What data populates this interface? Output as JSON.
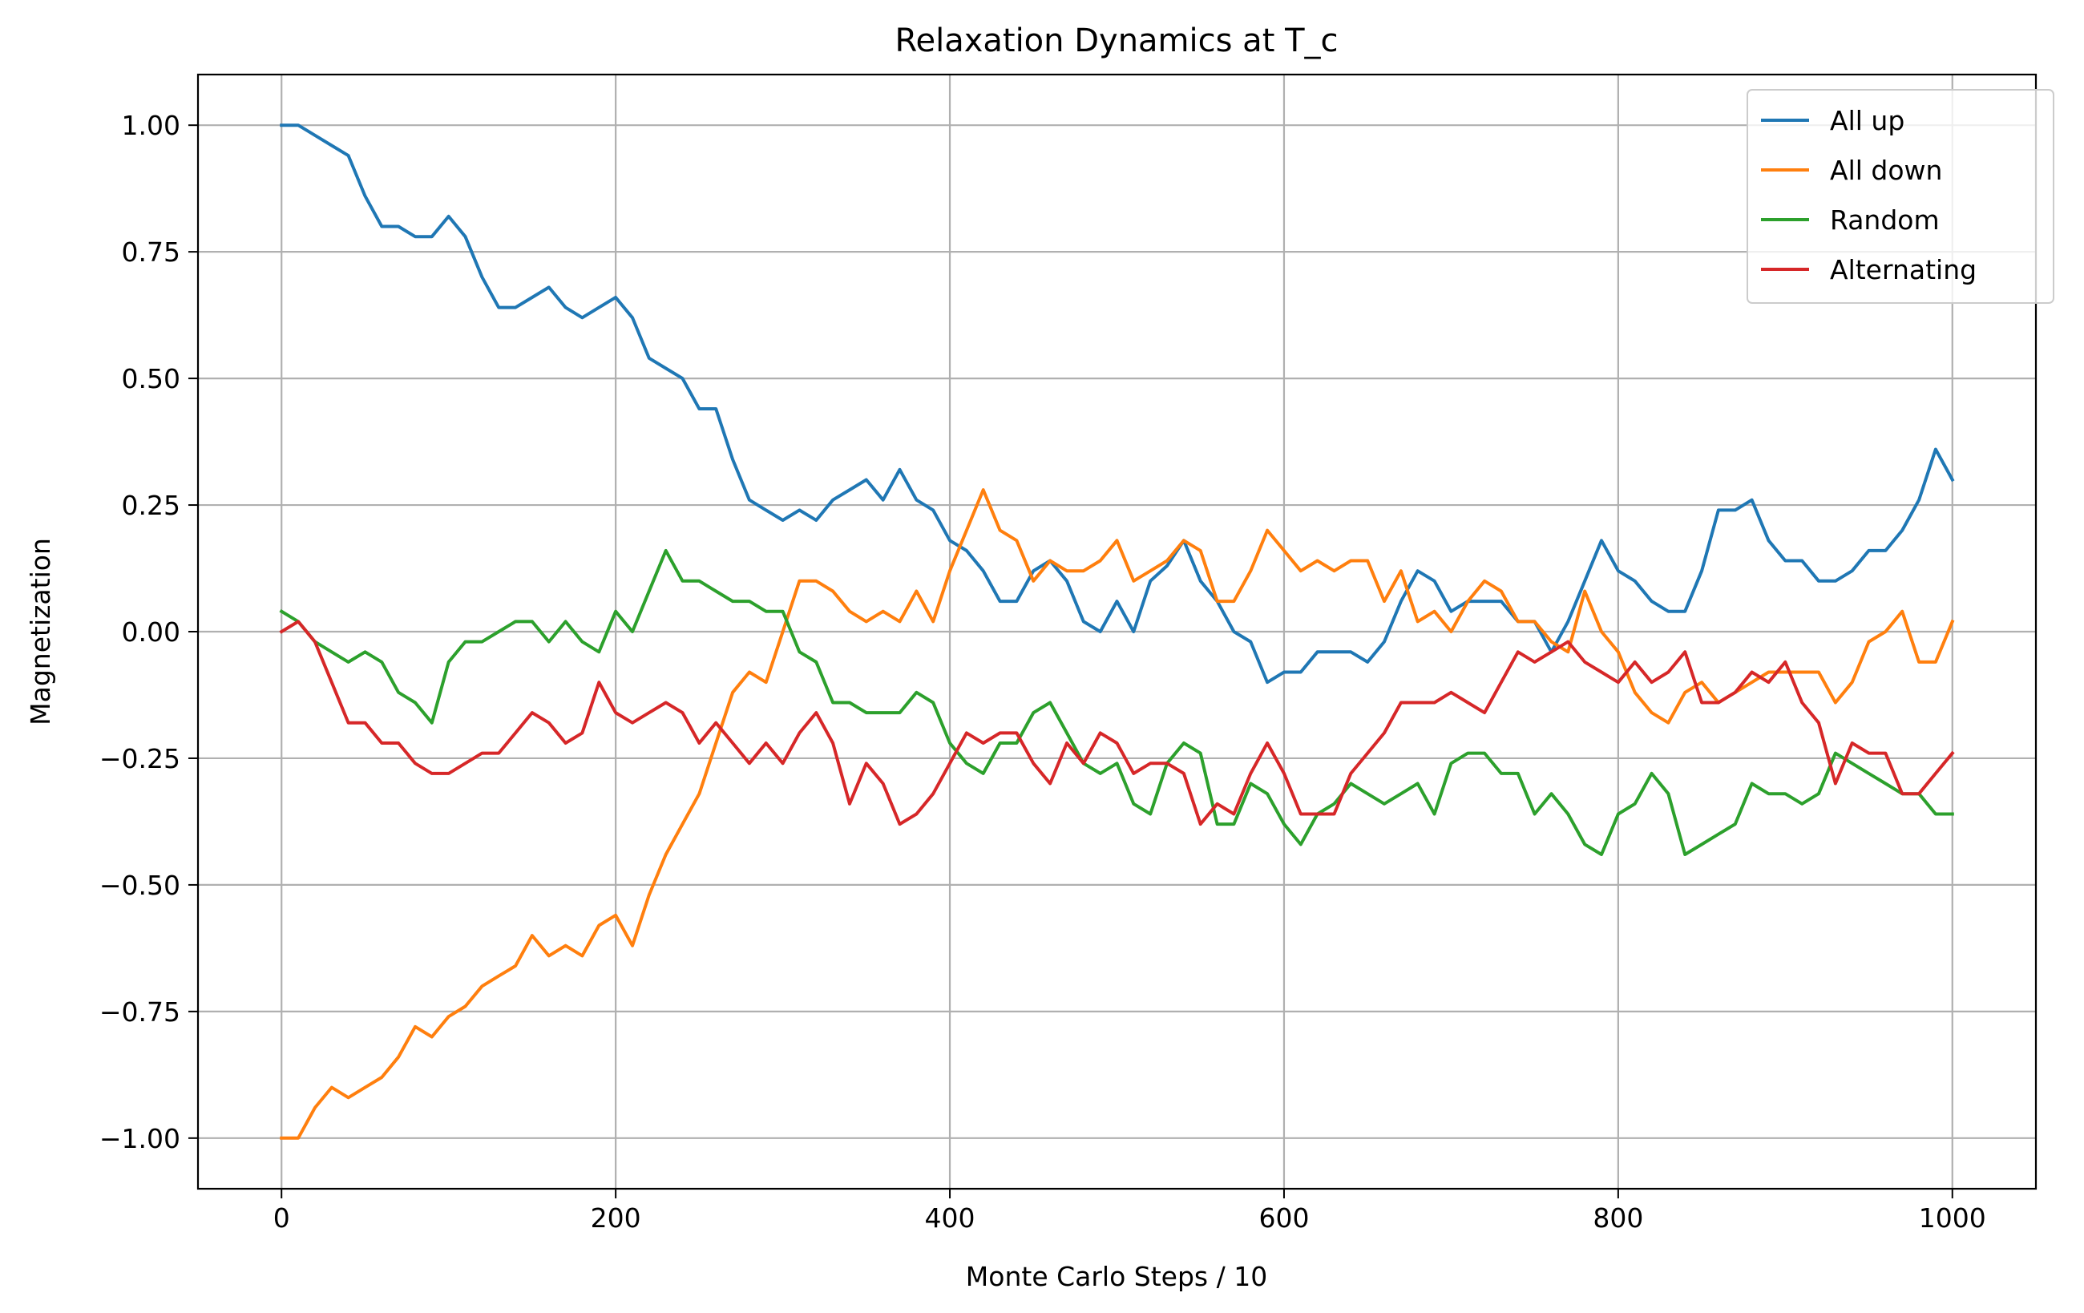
{
  "chart_data": {
    "type": "line",
    "title": "Relaxation Dynamics at T_c",
    "xlabel": "Monte Carlo Steps / 10",
    "ylabel": "Magnetization",
    "xlim": [
      -50,
      1050
    ],
    "ylim": [
      -1.1,
      1.1
    ],
    "xticks": [
      0,
      200,
      400,
      600,
      800,
      1000
    ],
    "xtick_labels": [
      "0",
      "200",
      "400",
      "600",
      "800",
      "1000"
    ],
    "yticks": [
      1.0,
      0.75,
      0.5,
      0.25,
      0.0,
      -0.25,
      -0.5,
      -0.75,
      -1.0
    ],
    "ytick_labels": [
      "1.00",
      "0.75",
      "0.50",
      "0.25",
      "0.00",
      "−0.25",
      "−0.50",
      "−0.75",
      "−1.00"
    ],
    "grid": true,
    "legend_position": "top-right",
    "x_step": 10,
    "series": [
      {
        "name": "All up",
        "color": "#1f77b4",
        "values": [
          1.0,
          1.0,
          0.98,
          0.96,
          0.94,
          0.86,
          0.8,
          0.8,
          0.78,
          0.78,
          0.82,
          0.78,
          0.7,
          0.64,
          0.64,
          0.66,
          0.68,
          0.64,
          0.62,
          0.64,
          0.66,
          0.62,
          0.54,
          0.52,
          0.5,
          0.44,
          0.44,
          0.34,
          0.26,
          0.24,
          0.22,
          0.24,
          0.22,
          0.26,
          0.28,
          0.3,
          0.26,
          0.32,
          0.26,
          0.24,
          0.18,
          0.16,
          0.12,
          0.06,
          0.06,
          0.12,
          0.14,
          0.1,
          0.02,
          0.0,
          0.06,
          0.0,
          0.1,
          0.13,
          0.18,
          0.1,
          0.06,
          0.0,
          -0.02,
          -0.1,
          -0.08,
          -0.08,
          -0.04,
          -0.04,
          -0.04,
          -0.06,
          -0.02,
          0.06,
          0.12,
          0.1,
          0.04,
          0.06,
          0.06,
          0.06,
          0.02,
          0.02,
          -0.04,
          0.02,
          0.1,
          0.18,
          0.12,
          0.1,
          0.06,
          0.04,
          0.04,
          0.12,
          0.24,
          0.24,
          0.26,
          0.18,
          0.14,
          0.14,
          0.1,
          0.1,
          0.12,
          0.16,
          0.16,
          0.2,
          0.26,
          0.36,
          0.3
        ]
      },
      {
        "name": "All down",
        "color": "#ff7f0e",
        "values": [
          -1.0,
          -1.0,
          -0.94,
          -0.9,
          -0.92,
          -0.9,
          -0.88,
          -0.84,
          -0.78,
          -0.8,
          -0.76,
          -0.74,
          -0.7,
          -0.68,
          -0.66,
          -0.6,
          -0.64,
          -0.62,
          -0.64,
          -0.58,
          -0.56,
          -0.62,
          -0.52,
          -0.44,
          -0.38,
          -0.32,
          -0.22,
          -0.12,
          -0.08,
          -0.1,
          0.0,
          0.1,
          0.1,
          0.08,
          0.04,
          0.02,
          0.04,
          0.02,
          0.08,
          0.02,
          0.12,
          0.2,
          0.28,
          0.2,
          0.18,
          0.1,
          0.14,
          0.12,
          0.12,
          0.14,
          0.18,
          0.1,
          0.12,
          0.14,
          0.18,
          0.16,
          0.06,
          0.06,
          0.12,
          0.2,
          0.16,
          0.12,
          0.14,
          0.12,
          0.14,
          0.14,
          0.06,
          0.12,
          0.02,
          0.04,
          0.0,
          0.06,
          0.1,
          0.08,
          0.02,
          0.02,
          -0.02,
          -0.04,
          0.08,
          0.0,
          -0.04,
          -0.12,
          -0.16,
          -0.18,
          -0.12,
          -0.1,
          -0.14,
          -0.12,
          -0.1,
          -0.08,
          -0.08,
          -0.08,
          -0.08,
          -0.14,
          -0.1,
          -0.02,
          0.0,
          0.04,
          -0.06,
          -0.06,
          0.02
        ]
      },
      {
        "name": "Random",
        "color": "#2ca02c",
        "values": [
          0.04,
          0.02,
          -0.02,
          -0.04,
          -0.06,
          -0.04,
          -0.06,
          -0.12,
          -0.14,
          -0.18,
          -0.06,
          -0.02,
          -0.02,
          0.0,
          0.02,
          0.02,
          -0.02,
          0.02,
          -0.02,
          -0.04,
          0.04,
          0.0,
          0.08,
          0.16,
          0.1,
          0.1,
          0.08,
          0.06,
          0.06,
          0.04,
          0.04,
          -0.04,
          -0.06,
          -0.14,
          -0.14,
          -0.16,
          -0.16,
          -0.16,
          -0.12,
          -0.14,
          -0.22,
          -0.26,
          -0.28,
          -0.22,
          -0.22,
          -0.16,
          -0.14,
          -0.2,
          -0.26,
          -0.28,
          -0.26,
          -0.34,
          -0.36,
          -0.26,
          -0.22,
          -0.24,
          -0.38,
          -0.38,
          -0.3,
          -0.32,
          -0.38,
          -0.42,
          -0.36,
          -0.34,
          -0.3,
          -0.32,
          -0.34,
          -0.32,
          -0.3,
          -0.36,
          -0.26,
          -0.24,
          -0.24,
          -0.28,
          -0.28,
          -0.36,
          -0.32,
          -0.36,
          -0.42,
          -0.44,
          -0.36,
          -0.34,
          -0.28,
          -0.32,
          -0.44,
          -0.42,
          -0.4,
          -0.38,
          -0.3,
          -0.32,
          -0.32,
          -0.34,
          -0.32,
          -0.24,
          -0.26,
          -0.28,
          -0.3,
          -0.32,
          -0.32,
          -0.36,
          -0.36
        ]
      },
      {
        "name": "Alternating",
        "color": "#d62728",
        "values": [
          0.0,
          0.02,
          -0.02,
          -0.1,
          -0.18,
          -0.18,
          -0.22,
          -0.22,
          -0.26,
          -0.28,
          -0.28,
          -0.26,
          -0.24,
          -0.24,
          -0.2,
          -0.16,
          -0.18,
          -0.22,
          -0.2,
          -0.1,
          -0.16,
          -0.18,
          -0.16,
          -0.14,
          -0.16,
          -0.22,
          -0.18,
          -0.22,
          -0.26,
          -0.22,
          -0.26,
          -0.2,
          -0.16,
          -0.22,
          -0.34,
          -0.26,
          -0.3,
          -0.38,
          -0.36,
          -0.32,
          -0.26,
          -0.2,
          -0.22,
          -0.2,
          -0.2,
          -0.26,
          -0.3,
          -0.22,
          -0.26,
          -0.2,
          -0.22,
          -0.28,
          -0.26,
          -0.26,
          -0.28,
          -0.38,
          -0.34,
          -0.36,
          -0.28,
          -0.22,
          -0.28,
          -0.36,
          -0.36,
          -0.36,
          -0.28,
          -0.24,
          -0.2,
          -0.14,
          -0.14,
          -0.14,
          -0.12,
          -0.14,
          -0.16,
          -0.1,
          -0.04,
          -0.06,
          -0.04,
          -0.02,
          -0.06,
          -0.08,
          -0.1,
          -0.06,
          -0.1,
          -0.08,
          -0.04,
          -0.14,
          -0.14,
          -0.12,
          -0.08,
          -0.1,
          -0.06,
          -0.14,
          -0.18,
          -0.3,
          -0.22,
          -0.24,
          -0.24,
          -0.32,
          -0.32,
          -0.28,
          -0.24
        ]
      }
    ]
  }
}
